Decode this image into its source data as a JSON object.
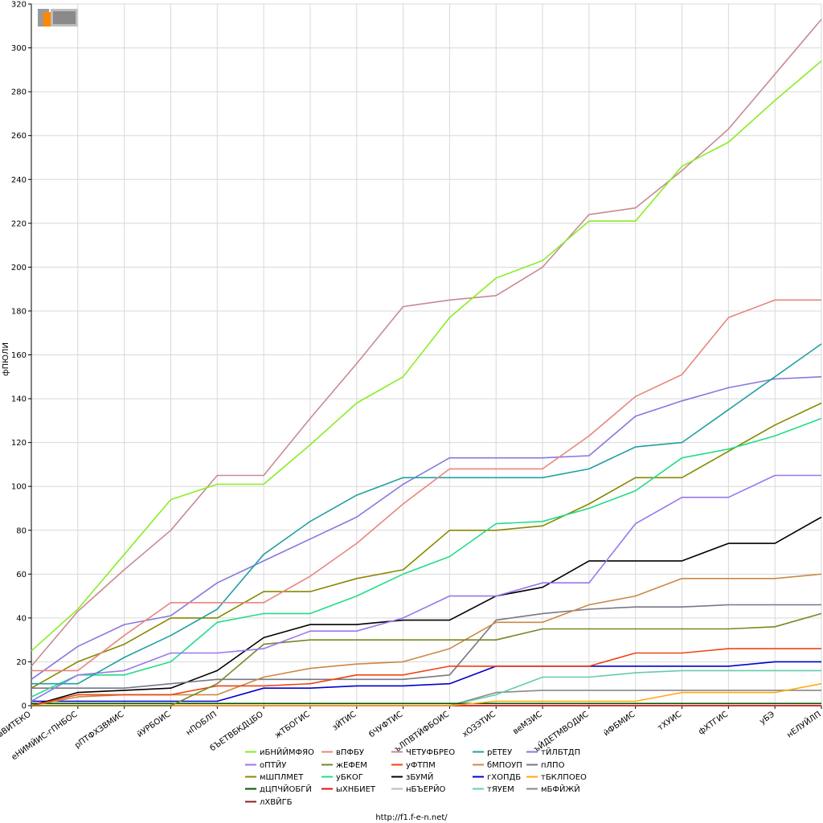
{
  "footer": {
    "url": "http://f1.f-e-n.net/"
  },
  "colors": {
    "grid": "#d8d8d8",
    "axis": "#000000",
    "background": "#ffffff"
  },
  "chart_data": {
    "type": "line",
    "title": "",
    "xlabel": "",
    "ylabel": "фПЮЛИ",
    "ylim": [
      0,
      320
    ],
    "yticks": [
      0,
      20,
      40,
      60,
      80,
      100,
      120,
      140,
      160,
      180,
      200,
      220,
      240,
      260,
      280,
      300,
      320
    ],
    "grid": true,
    "legend_position": "bottom",
    "categories": [
      "вВИТЕКО",
      "еНИМЙИС-гПНБОС",
      "рПТФХЗВМИС",
      "йУРБОИС",
      "нПОБЛП",
      "бЪЕТВБКДЦБО",
      "жТБОГИС",
      "зЙТИС",
      "бЧУФТИС",
      "ъЛПВТЙФБОИС",
      "хОЗЭТИС",
      "веМЗИС",
      "ъЙДЕТМВОДИС",
      "йФБМИС",
      "тХУИС",
      "фХТГИС",
      "уБЭ",
      "нЕЛУЙЛП"
    ],
    "series": [
      {
        "name": "иБНЙЙМФЯО",
        "color": "#88ee22",
        "values": [
          25,
          44,
          69,
          94,
          101,
          101,
          119,
          138,
          150,
          177,
          195,
          203,
          221,
          221,
          246,
          257,
          276,
          294
        ]
      },
      {
        "name": "вПФБУ",
        "color": "#e8867e",
        "values": [
          16,
          16,
          32,
          47,
          47,
          47,
          59,
          74,
          92,
          108,
          108,
          108,
          123,
          141,
          151,
          177,
          185,
          185
        ]
      },
      {
        "name": "ЧЕТУФБРЕО",
        "color": "#c88a94",
        "values": [
          18,
          43,
          62,
          80,
          105,
          105,
          131,
          156,
          182,
          185,
          187,
          200,
          224,
          227,
          244,
          263,
          288,
          313
        ]
      },
      {
        "name": "рЕТЕУ",
        "color": "#22a0a0",
        "values": [
          10,
          10,
          22,
          32,
          44,
          69,
          84,
          96,
          104,
          104,
          104,
          104,
          108,
          118,
          120,
          135,
          150,
          165
        ]
      },
      {
        "name": "тЙЛБТДП",
        "color": "#8877dd",
        "values": [
          12,
          27,
          37,
          41,
          56,
          66,
          76,
          86,
          101,
          113,
          113,
          113,
          114,
          132,
          139,
          145,
          149,
          150
        ]
      },
      {
        "name": "оПТЙУ",
        "color": "#9977ee",
        "values": [
          2,
          14,
          16,
          24,
          24,
          26,
          34,
          34,
          40,
          50,
          50,
          56,
          56,
          83,
          95,
          95,
          105,
          105
        ]
      },
      {
        "name": "жЕФЕМ",
        "color": "#778822",
        "values": [
          0,
          0,
          0,
          0,
          10,
          28,
          30,
          30,
          30,
          30,
          30,
          35,
          35,
          35,
          35,
          35,
          36,
          42
        ]
      },
      {
        "name": "уБКОГ",
        "color": "#22dd88",
        "values": [
          4,
          14,
          14,
          20,
          38,
          42,
          42,
          50,
          60,
          68,
          83,
          84,
          90,
          98,
          113,
          117,
          123,
          131
        ]
      },
      {
        "name": "уФТПМ",
        "color": "#ee4411",
        "values": [
          0,
          5,
          5,
          5,
          9,
          9,
          10,
          14,
          14,
          18,
          18,
          18,
          18,
          24,
          24,
          26,
          26,
          26
        ]
      },
      {
        "name": "бМПОУП",
        "color": "#cc8844",
        "values": [
          0,
          4,
          5,
          5,
          5,
          13,
          17,
          19,
          20,
          26,
          38,
          38,
          46,
          50,
          58,
          58,
          58,
          60
        ]
      },
      {
        "name": "пЛПО",
        "color": "#777788",
        "values": [
          8,
          8,
          8,
          10,
          12,
          12,
          12,
          12,
          12,
          14,
          39,
          42,
          44,
          45,
          45,
          46,
          46,
          46
        ]
      },
      {
        "name": "мШПЛМЕТ",
        "color": "#888800",
        "values": [
          8,
          20,
          28,
          40,
          40,
          52,
          52,
          58,
          62,
          80,
          80,
          82,
          92,
          104,
          104,
          116,
          128,
          138
        ]
      },
      {
        "name": "зБУМЙ",
        "color": "#000000",
        "values": [
          0,
          6,
          7,
          8,
          16,
          31,
          37,
          37,
          39,
          39,
          50,
          54,
          66,
          66,
          66,
          74,
          74,
          86
        ]
      },
      {
        "name": "гХОПДБ",
        "color": "#0000cc",
        "values": [
          2,
          2,
          2,
          2,
          2,
          8,
          8,
          9,
          9,
          10,
          18,
          18,
          18,
          18,
          18,
          18,
          20,
          20
        ]
      },
      {
        "name": "тБКЛПОЕО",
        "color": "#ffaa11",
        "values": [
          0,
          0,
          0,
          0,
          0,
          0,
          0,
          0,
          0,
          0,
          2,
          2,
          2,
          2,
          6,
          6,
          6,
          10
        ]
      },
      {
        "name": "дЦПЧЙОБГЙ",
        "color": "#005500",
        "values": [
          1,
          1,
          1,
          1,
          1,
          1,
          1,
          1,
          1,
          1,
          1,
          1,
          1,
          1,
          1,
          1,
          1,
          1
        ]
      },
      {
        "name": "ыХНБИЕТ",
        "color": "#dd1111",
        "values": [
          0,
          0,
          0,
          0,
          0,
          0,
          0,
          0,
          0,
          0,
          0,
          0,
          0,
          0,
          0,
          0,
          0,
          0
        ]
      },
      {
        "name": "нБЪЕРЙО",
        "color": "#bbbbbb",
        "values": [
          0,
          0,
          0,
          0,
          0,
          0,
          0,
          0,
          0,
          0,
          0,
          0,
          0,
          0,
          0,
          0,
          0,
          0
        ]
      },
      {
        "name": "тЯУЕМ",
        "color": "#66ccaa",
        "values": [
          0,
          0,
          0,
          0,
          0,
          0,
          0,
          0,
          0,
          0,
          5,
          13,
          13,
          15,
          16,
          16,
          16,
          16
        ]
      },
      {
        "name": "мБФЙЖЙ",
        "color": "#888888",
        "values": [
          0,
          0,
          0,
          0,
          0,
          0,
          0,
          0,
          0,
          0,
          6,
          7,
          7,
          7,
          7,
          7,
          7,
          7
        ]
      },
      {
        "name": "лХВЙГБ",
        "color": "#882222",
        "values": [
          0,
          0,
          0,
          0,
          0,
          0,
          0,
          0,
          0,
          0,
          0,
          0,
          0,
          0,
          0,
          0,
          0,
          0
        ]
      }
    ],
    "legend_order": [
      [
        "иБНЙЙМФЯО",
        "вПФБУ",
        "ЧЕТУФБРЕО",
        "рЕТЕУ",
        "тЙЛБТДП"
      ],
      [
        "оПТЙУ",
        "жЕФЕМ",
        "уБКОГ",
        "уФТПМ",
        "бМПОУП",
        "пЛПО"
      ],
      [
        "мШПЛМЕТ",
        "зБУМЙ",
        "гХОПДБ",
        "тБКЛПОЕО"
      ],
      [
        "дЦПЧЙОБГЙ",
        "ыХНБИЕТ",
        "нБЪЕРЙО",
        "тЯУЕМ",
        "мБФЙЖЙ"
      ],
      [
        "лХВЙГБ"
      ]
    ]
  }
}
